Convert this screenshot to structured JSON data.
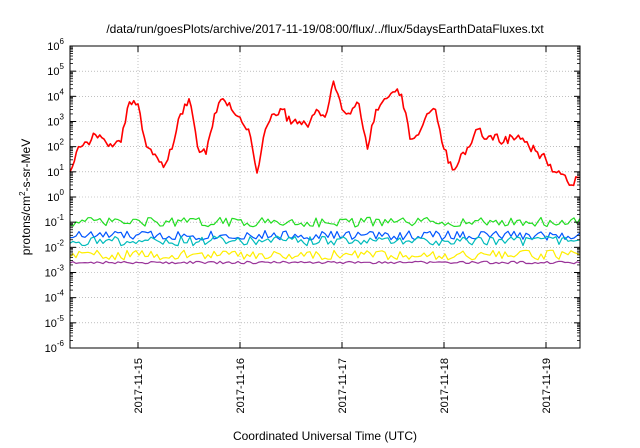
{
  "chart_data": {
    "type": "line",
    "title": "/data/run/goesPlots/archive/2017-11-19/08:00/flux/../flux/5daysEarthDataFluxes.txt",
    "xlabel": "Coordinated Universal Time (UTC)",
    "ylabel": "protons/cm²-s-sr-MeV",
    "ylabel_parts": {
      "pre": "protons/cm",
      "sup": "2",
      "post": "-s-sr-MeV"
    },
    "yscale": "log",
    "ylim": [
      1e-06,
      1000000.0
    ],
    "y_ticks": [
      {
        "value": 1e-06,
        "base": "10",
        "exp": "-6"
      },
      {
        "value": 1e-05,
        "base": "10",
        "exp": "-5"
      },
      {
        "value": 0.0001,
        "base": "10",
        "exp": "-4"
      },
      {
        "value": 0.001,
        "base": "10",
        "exp": "-3"
      },
      {
        "value": 0.01,
        "base": "10",
        "exp": "-2"
      },
      {
        "value": 0.1,
        "base": "10",
        "exp": "-1"
      },
      {
        "value": 1,
        "base": "10",
        "exp": "0"
      },
      {
        "value": 10,
        "base": "10",
        "exp": "1"
      },
      {
        "value": 100,
        "base": "10",
        "exp": "2"
      },
      {
        "value": 1000,
        "base": "10",
        "exp": "3"
      },
      {
        "value": 10000,
        "base": "10",
        "exp": "4"
      },
      {
        "value": 100000,
        "base": "10",
        "exp": "5"
      },
      {
        "value": 1000000,
        "base": "10",
        "exp": "6"
      }
    ],
    "xlim": [
      "2017-11-14 08:00",
      "2017-11-19 08:00"
    ],
    "x_ticks": [
      "2017-11-15",
      "2017-11-16",
      "2017-11-17",
      "2017-11-18",
      "2017-11-19"
    ],
    "grid": true,
    "series": [
      {
        "color": "#ff0000",
        "x": [
          "2017-11-14 08:00",
          "2017-11-14 10:00",
          "2017-11-14 12:00",
          "2017-11-14 14:00",
          "2017-11-14 16:00",
          "2017-11-14 18:00",
          "2017-11-14 20:00",
          "2017-11-14 22:00",
          "2017-11-15 00:00",
          "2017-11-15 02:00",
          "2017-11-15 04:00",
          "2017-11-15 06:00",
          "2017-11-15 08:00",
          "2017-11-15 10:00",
          "2017-11-15 12:00",
          "2017-11-15 14:00",
          "2017-11-15 16:00",
          "2017-11-15 18:00",
          "2017-11-15 20:00",
          "2017-11-15 22:00",
          "2017-11-16 00:00",
          "2017-11-16 02:00",
          "2017-11-16 04:00",
          "2017-11-16 06:00",
          "2017-11-16 08:00",
          "2017-11-16 10:00",
          "2017-11-16 12:00",
          "2017-11-16 14:00",
          "2017-11-16 16:00",
          "2017-11-16 18:00",
          "2017-11-16 20:00",
          "2017-11-16 22:00",
          "2017-11-17 00:00",
          "2017-11-17 02:00",
          "2017-11-17 04:00",
          "2017-11-17 06:00",
          "2017-11-17 08:00",
          "2017-11-17 10:00",
          "2017-11-17 12:00",
          "2017-11-17 14:00",
          "2017-11-17 16:00",
          "2017-11-17 18:00",
          "2017-11-17 20:00",
          "2017-11-17 22:00",
          "2017-11-18 00:00",
          "2017-11-18 02:00",
          "2017-11-18 04:00",
          "2017-11-18 06:00",
          "2017-11-18 08:00",
          "2017-11-18 10:00",
          "2017-11-18 12:00",
          "2017-11-18 14:00",
          "2017-11-18 16:00",
          "2017-11-18 18:00",
          "2017-11-18 20:00",
          "2017-11-18 22:00",
          "2017-11-19 00:00",
          "2017-11-19 02:00",
          "2017-11-19 04:00",
          "2017-11-19 06:00",
          "2017-11-19 08:00"
        ],
        "values": [
          10,
          100,
          150,
          300,
          200,
          100,
          150,
          6000,
          5000,
          100,
          50,
          15,
          80,
          2000,
          8000,
          100,
          50,
          2000,
          8000,
          3000,
          1500,
          500,
          9,
          500,
          2000,
          3000,
          800,
          1000,
          600,
          3000,
          1500,
          40000,
          3000,
          2000,
          5000,
          80,
          3000,
          8000,
          15000,
          12000,
          200,
          300,
          2000,
          3000,
          80,
          12,
          50,
          100,
          500,
          200,
          300,
          150,
          250,
          200,
          100,
          60,
          30,
          10,
          8,
          3,
          6
        ]
      },
      {
        "color": "#22dd22",
        "x": [
          "2017-11-14 08:00",
          "2017-11-19 08:00"
        ],
        "values": [
          0.1,
          0.1
        ]
      },
      {
        "color": "#0055ff",
        "x": [
          "2017-11-14 08:00",
          "2017-11-19 08:00"
        ],
        "values": [
          0.03,
          0.03
        ]
      },
      {
        "color": "#00bbbb",
        "x": [
          "2017-11-14 08:00",
          "2017-11-19 08:00"
        ],
        "values": [
          0.018,
          0.018
        ]
      },
      {
        "color": "#ffee00",
        "x": [
          "2017-11-14 08:00",
          "2017-11-19 08:00"
        ],
        "values": [
          0.005,
          0.005
        ]
      },
      {
        "color": "#993399",
        "x": [
          "2017-11-14 08:00",
          "2017-11-19 08:00"
        ],
        "values": [
          0.0025,
          0.0025
        ]
      }
    ]
  }
}
